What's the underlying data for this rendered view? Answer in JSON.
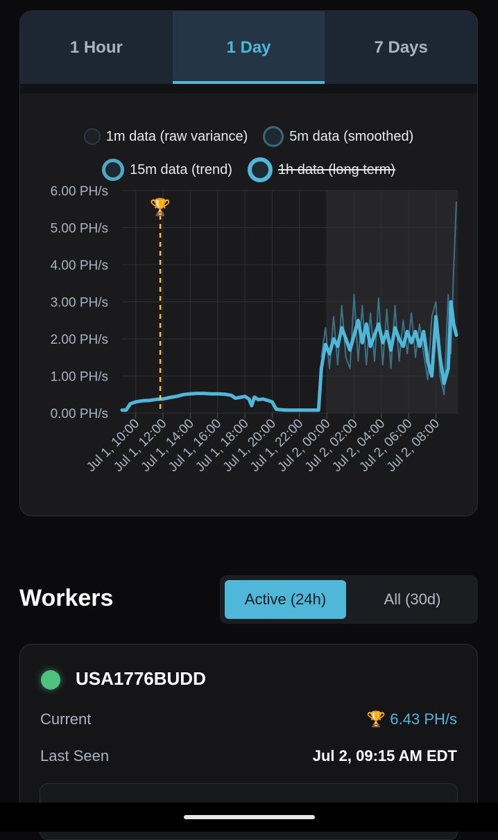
{
  "tabs": [
    {
      "label": "1 Hour",
      "active": false
    },
    {
      "label": "1 Day",
      "active": true
    },
    {
      "label": "7 Days",
      "active": false
    }
  ],
  "legend": [
    {
      "label": "1m data (raw variance)",
      "hidden": false
    },
    {
      "label": "5m data (smoothed)",
      "hidden": false
    },
    {
      "label": "15m data (trend)",
      "hidden": false
    },
    {
      "label": "1h data (long term)",
      "hidden": true
    }
  ],
  "trophy_icon": "🏆",
  "chart_data": {
    "type": "line",
    "ylim": [
      0,
      6
    ],
    "yunit": "PH/s",
    "yticks": [
      "0.00 PH/s",
      "1.00 PH/s",
      "2.00 PH/s",
      "3.00 PH/s",
      "4.00 PH/s",
      "5.00 PH/s",
      "6.00 PH/s"
    ],
    "xlim": [
      9.0,
      33.6
    ],
    "xticks": [
      {
        "label": "Jul 1, 10:00",
        "x": 10
      },
      {
        "label": "Jul 1, 12:00",
        "x": 12
      },
      {
        "label": "Jul 1, 14:00",
        "x": 14
      },
      {
        "label": "Jul 1, 16:00",
        "x": 16
      },
      {
        "label": "Jul 1, 18:00",
        "x": 18
      },
      {
        "label": "Jul 1, 20:00",
        "x": 20
      },
      {
        "label": "Jul 1, 22:00",
        "x": 22
      },
      {
        "label": "Jul 2, 00:00",
        "x": 24
      },
      {
        "label": "Jul 2, 02:00",
        "x": 26
      },
      {
        "label": "Jul 2, 04:00",
        "x": 28
      },
      {
        "label": "Jul 2, 06:00",
        "x": 30
      },
      {
        "label": "Jul 2, 08:00",
        "x": 32
      }
    ],
    "shaded_region": [
      24,
      33.6
    ],
    "best_share_marker_x": 11.8,
    "series": [
      {
        "name": "15m data (trend)",
        "points": [
          [
            9.0,
            0.08
          ],
          [
            9.3,
            0.08
          ],
          [
            9.6,
            0.25
          ],
          [
            10.0,
            0.3
          ],
          [
            10.5,
            0.33
          ],
          [
            11.0,
            0.34
          ],
          [
            11.5,
            0.37
          ],
          [
            12.0,
            0.38
          ],
          [
            12.5,
            0.42
          ],
          [
            13.0,
            0.45
          ],
          [
            13.5,
            0.5
          ],
          [
            14.0,
            0.52
          ],
          [
            14.5,
            0.53
          ],
          [
            15.0,
            0.53
          ],
          [
            15.5,
            0.52
          ],
          [
            16.0,
            0.52
          ],
          [
            16.5,
            0.51
          ],
          [
            17.0,
            0.48
          ],
          [
            17.3,
            0.4
          ],
          [
            17.6,
            0.42
          ],
          [
            18.0,
            0.45
          ],
          [
            18.3,
            0.38
          ],
          [
            18.5,
            0.2
          ],
          [
            18.7,
            0.43
          ],
          [
            19.0,
            0.36
          ],
          [
            19.3,
            0.38
          ],
          [
            19.6,
            0.35
          ],
          [
            20.0,
            0.3
          ],
          [
            20.3,
            0.1
          ],
          [
            21.0,
            0.08
          ],
          [
            22.0,
            0.08
          ],
          [
            23.0,
            0.08
          ],
          [
            23.4,
            0.08
          ],
          [
            23.6,
            1.2
          ],
          [
            23.9,
            1.85
          ],
          [
            24.2,
            1.6
          ],
          [
            24.5,
            2.0
          ],
          [
            24.8,
            1.8
          ],
          [
            25.1,
            2.3
          ],
          [
            25.4,
            2.0
          ],
          [
            25.7,
            1.7
          ],
          [
            26.0,
            2.1
          ],
          [
            26.3,
            2.5
          ],
          [
            26.6,
            1.9
          ],
          [
            26.9,
            2.4
          ],
          [
            27.2,
            1.8
          ],
          [
            27.5,
            2.1
          ],
          [
            27.8,
            2.4
          ],
          [
            28.1,
            1.9
          ],
          [
            28.4,
            2.2
          ],
          [
            28.7,
            1.7
          ],
          [
            29.0,
            2.3
          ],
          [
            29.3,
            2.0
          ],
          [
            29.6,
            1.8
          ],
          [
            29.9,
            2.2
          ],
          [
            30.2,
            1.9
          ],
          [
            30.5,
            2.2
          ],
          [
            30.8,
            1.8
          ],
          [
            31.1,
            2.2
          ],
          [
            31.4,
            1.4
          ],
          [
            31.7,
            1.0
          ],
          [
            32.0,
            2.6
          ],
          [
            32.3,
            1.5
          ],
          [
            32.6,
            0.8
          ],
          [
            32.9,
            1.2
          ],
          [
            33.1,
            3.0
          ],
          [
            33.3,
            2.4
          ],
          [
            33.5,
            2.1
          ]
        ]
      },
      {
        "name": "1m data (raw variance)",
        "points": [
          [
            23.6,
            1.5
          ],
          [
            23.9,
            2.3
          ],
          [
            24.2,
            1.2
          ],
          [
            24.5,
            2.6
          ],
          [
            24.8,
            1.3
          ],
          [
            25.1,
            2.9
          ],
          [
            25.4,
            1.5
          ],
          [
            25.7,
            1.2
          ],
          [
            26.0,
            3.2
          ],
          [
            26.3,
            1.4
          ],
          [
            26.6,
            2.9
          ],
          [
            26.9,
            1.3
          ],
          [
            27.2,
            2.7
          ],
          [
            27.5,
            1.4
          ],
          [
            27.8,
            3.1
          ],
          [
            28.1,
            1.3
          ],
          [
            28.4,
            2.8
          ],
          [
            28.7,
            1.2
          ],
          [
            29.0,
            2.9
          ],
          [
            29.3,
            1.4
          ],
          [
            29.6,
            2.5
          ],
          [
            29.9,
            1.6
          ],
          [
            30.2,
            2.7
          ],
          [
            30.5,
            1.5
          ],
          [
            30.8,
            2.4
          ],
          [
            31.1,
            1.6
          ],
          [
            31.4,
            0.9
          ],
          [
            31.7,
            2.6
          ],
          [
            32.0,
            3.0
          ],
          [
            32.3,
            1.0
          ],
          [
            32.6,
            0.5
          ],
          [
            32.9,
            3.2
          ],
          [
            33.1,
            1.6
          ],
          [
            33.3,
            3.9
          ],
          [
            33.5,
            5.7
          ]
        ]
      }
    ]
  },
  "workers": {
    "title": "Workers",
    "filters": [
      {
        "label": "Active (24h)",
        "active": true
      },
      {
        "label": "All (30d)",
        "active": false
      }
    ],
    "items": [
      {
        "name": "USA1776BUDD",
        "status_color": "#4fc27f",
        "current_label": "Current",
        "current_value": "6.43 PH/s",
        "last_seen_label": "Last Seen",
        "last_seen_value": "Jul 2, 09:15 AM EDT"
      }
    ]
  },
  "colors": {
    "accent": "#4fb8d8",
    "marker": "#f5c542",
    "online": "#4fc27f"
  }
}
